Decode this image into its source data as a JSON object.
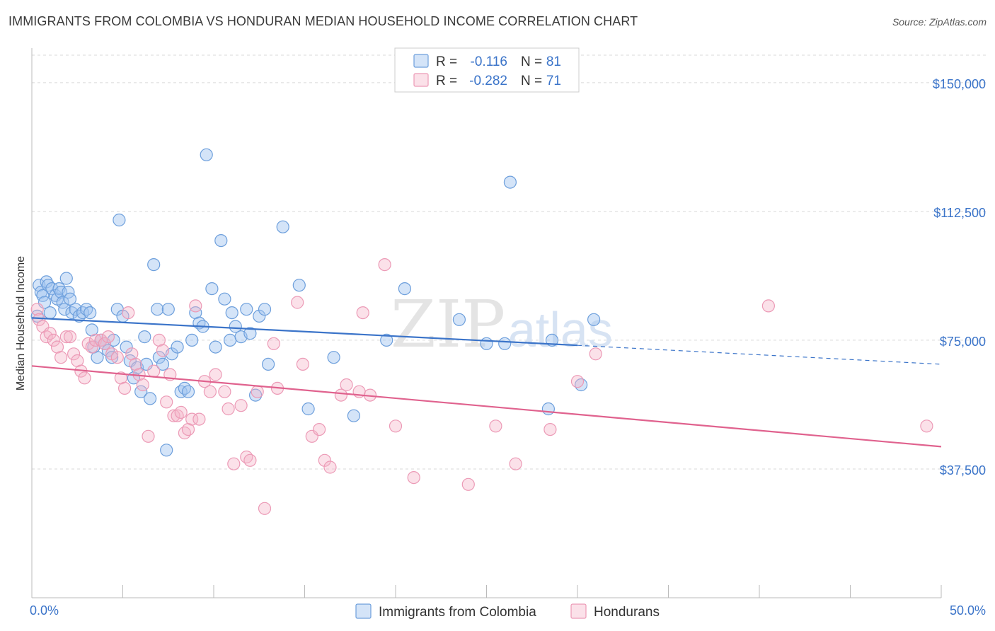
{
  "title": "IMMIGRANTS FROM COLOMBIA VS HONDURAN MEDIAN HOUSEHOLD INCOME CORRELATION CHART",
  "source": "Source: ZipAtlas.com",
  "watermark": {
    "zip": "ZIP",
    "atlas": "atlas"
  },
  "colors": {
    "blue": "#3b74c9",
    "blue_fill": "rgba(160,196,240,0.45)",
    "blue_stroke": "#6d9fdc",
    "pink": "#e0628e",
    "pink_fill": "rgba(245,180,200,0.40)",
    "pink_stroke": "#ec9ab6",
    "grid": "#d9d9d9"
  },
  "legend": {
    "rows": [
      {
        "r_label": "R =",
        "r_value": "-0.116",
        "n_label": "N =",
        "n_value": "81"
      },
      {
        "r_label": "R =",
        "r_value": "-0.282",
        "n_label": "N =",
        "n_value": "71"
      }
    ]
  },
  "chart_data": {
    "type": "scatter",
    "title": "IMMIGRANTS FROM COLOMBIA VS HONDURAN MEDIAN HOUSEHOLD INCOME CORRELATION CHART",
    "xlabel": "",
    "ylabel": "Median Household Income",
    "xlim": [
      0,
      50
    ],
    "ylim": [
      0,
      158000
    ],
    "x_tick_labels": [
      "0.0%",
      "50.0%"
    ],
    "y_ticks": [
      37500,
      75000,
      112500,
      150000
    ],
    "y_tick_labels": [
      "$37,500",
      "$75,000",
      "$112,500",
      "$150,000"
    ],
    "grid": true,
    "legend_position": "top-center",
    "series": [
      {
        "name": "Immigrants from Colombia",
        "r": -0.116,
        "n": 81,
        "trend": {
          "x0": 0,
          "y0": 81500,
          "x1": 30,
          "y1": 73500,
          "dashed_to_x": 50,
          "dashed_to_y": 68000
        },
        "points": [
          [
            0.3,
            82000
          ],
          [
            0.4,
            91000
          ],
          [
            0.5,
            89000
          ],
          [
            0.6,
            88000
          ],
          [
            0.7,
            86000
          ],
          [
            0.8,
            92000
          ],
          [
            0.9,
            91000
          ],
          [
            1.0,
            83000
          ],
          [
            1.1,
            90000
          ],
          [
            1.3,
            88000
          ],
          [
            1.4,
            87000
          ],
          [
            1.5,
            90000
          ],
          [
            1.6,
            89000
          ],
          [
            1.7,
            86000
          ],
          [
            1.8,
            84000
          ],
          [
            1.9,
            93000
          ],
          [
            2.0,
            89000
          ],
          [
            2.2,
            83000
          ],
          [
            2.4,
            84000
          ],
          [
            2.6,
            82000
          ],
          [
            2.8,
            83000
          ],
          [
            3.0,
            84000
          ],
          [
            3.2,
            83000
          ],
          [
            3.3,
            78000
          ],
          [
            3.4,
            73000
          ],
          [
            3.6,
            70000
          ],
          [
            3.8,
            75000
          ],
          [
            4.0,
            74000
          ],
          [
            4.2,
            72000
          ],
          [
            4.4,
            70000
          ],
          [
            4.5,
            75000
          ],
          [
            4.7,
            84000
          ],
          [
            4.8,
            110000
          ],
          [
            5.0,
            82000
          ],
          [
            5.2,
            73000
          ],
          [
            5.4,
            69000
          ],
          [
            5.6,
            64000
          ],
          [
            5.8,
            67000
          ],
          [
            6.0,
            60000
          ],
          [
            6.2,
            76000
          ],
          [
            6.3,
            68000
          ],
          [
            6.5,
            58000
          ],
          [
            6.7,
            97000
          ],
          [
            6.9,
            84000
          ],
          [
            7.0,
            70000
          ],
          [
            7.2,
            68000
          ],
          [
            7.4,
            43000
          ],
          [
            7.5,
            84000
          ],
          [
            7.7,
            71000
          ],
          [
            8.0,
            73000
          ],
          [
            8.2,
            60000
          ],
          [
            8.4,
            61000
          ],
          [
            8.6,
            60000
          ],
          [
            8.8,
            75000
          ],
          [
            9.0,
            83000
          ],
          [
            9.2,
            80000
          ],
          [
            9.4,
            79000
          ],
          [
            9.6,
            129000
          ],
          [
            9.9,
            90000
          ],
          [
            10.1,
            73000
          ],
          [
            10.4,
            104000
          ],
          [
            10.6,
            87000
          ],
          [
            10.9,
            75000
          ],
          [
            11.0,
            83000
          ],
          [
            11.2,
            79000
          ],
          [
            11.5,
            76000
          ],
          [
            11.8,
            84000
          ],
          [
            12.0,
            77000
          ],
          [
            12.3,
            59000
          ],
          [
            12.5,
            82000
          ],
          [
            12.8,
            84000
          ],
          [
            13.0,
            68000
          ],
          [
            13.8,
            108000
          ],
          [
            14.7,
            91000
          ],
          [
            15.2,
            55000
          ],
          [
            16.6,
            70000
          ],
          [
            17.7,
            53000
          ],
          [
            19.5,
            75000
          ],
          [
            20.5,
            90000
          ],
          [
            23.5,
            81000
          ],
          [
            26.3,
            121000
          ],
          [
            25.0,
            74000
          ],
          [
            26.0,
            74000
          ],
          [
            28.4,
            55000
          ],
          [
            28.6,
            75000
          ],
          [
            30.2,
            62000
          ],
          [
            30.9,
            81000
          ],
          [
            2.1,
            87000
          ]
        ]
      },
      {
        "name": "Hondurans",
        "r": -0.282,
        "n": 71,
        "trend": {
          "x0": 0,
          "y0": 67500,
          "x1": 50,
          "y1": 44000
        },
        "points": [
          [
            0.3,
            84000
          ],
          [
            0.4,
            81000
          ],
          [
            0.6,
            79000
          ],
          [
            0.8,
            76000
          ],
          [
            1.0,
            77000
          ],
          [
            1.2,
            75000
          ],
          [
            1.4,
            73000
          ],
          [
            1.6,
            70000
          ],
          [
            1.9,
            76000
          ],
          [
            2.1,
            76000
          ],
          [
            2.3,
            71000
          ],
          [
            2.5,
            69000
          ],
          [
            2.7,
            66000
          ],
          [
            2.9,
            64000
          ],
          [
            3.1,
            74000
          ],
          [
            3.3,
            73000
          ],
          [
            3.5,
            75000
          ],
          [
            3.8,
            75000
          ],
          [
            4.0,
            74000
          ],
          [
            4.2,
            76000
          ],
          [
            4.4,
            71000
          ],
          [
            4.7,
            70000
          ],
          [
            4.9,
            64000
          ],
          [
            5.1,
            61000
          ],
          [
            5.3,
            83000
          ],
          [
            5.5,
            71000
          ],
          [
            5.7,
            68000
          ],
          [
            5.9,
            65000
          ],
          [
            6.1,
            62000
          ],
          [
            6.4,
            47000
          ],
          [
            6.7,
            66000
          ],
          [
            7.0,
            75000
          ],
          [
            7.2,
            72000
          ],
          [
            7.4,
            57000
          ],
          [
            7.6,
            65000
          ],
          [
            7.8,
            53000
          ],
          [
            8.0,
            53000
          ],
          [
            8.2,
            54000
          ],
          [
            8.4,
            48000
          ],
          [
            8.6,
            49000
          ],
          [
            8.8,
            52000
          ],
          [
            9.0,
            85000
          ],
          [
            9.2,
            52000
          ],
          [
            9.5,
            63000
          ],
          [
            9.8,
            60000
          ],
          [
            10.1,
            65000
          ],
          [
            10.6,
            60000
          ],
          [
            10.8,
            55000
          ],
          [
            11.1,
            39000
          ],
          [
            11.5,
            56000
          ],
          [
            11.8,
            41000
          ],
          [
            12.0,
            40000
          ],
          [
            12.4,
            60000
          ],
          [
            12.8,
            26000
          ],
          [
            13.3,
            74000
          ],
          [
            13.5,
            61000
          ],
          [
            14.6,
            86000
          ],
          [
            14.9,
            68000
          ],
          [
            15.4,
            47000
          ],
          [
            15.8,
            49000
          ],
          [
            16.1,
            40000
          ],
          [
            16.4,
            38000
          ],
          [
            17.0,
            59000
          ],
          [
            17.3,
            62000
          ],
          [
            18.2,
            83000
          ],
          [
            18.6,
            59000
          ],
          [
            19.4,
            97000
          ],
          [
            20.0,
            50000
          ],
          [
            21.0,
            35000
          ],
          [
            24.0,
            33000
          ],
          [
            28.5,
            49000
          ],
          [
            30.0,
            63000
          ],
          [
            31.0,
            71000
          ],
          [
            40.5,
            85000
          ],
          [
            49.2,
            50000
          ],
          [
            18.0,
            60000
          ],
          [
            25.5,
            50000
          ],
          [
            26.6,
            39000
          ]
        ]
      }
    ]
  },
  "bottom_legend": [
    {
      "label": "Immigrants from Colombia"
    },
    {
      "label": "Hondurans"
    }
  ]
}
